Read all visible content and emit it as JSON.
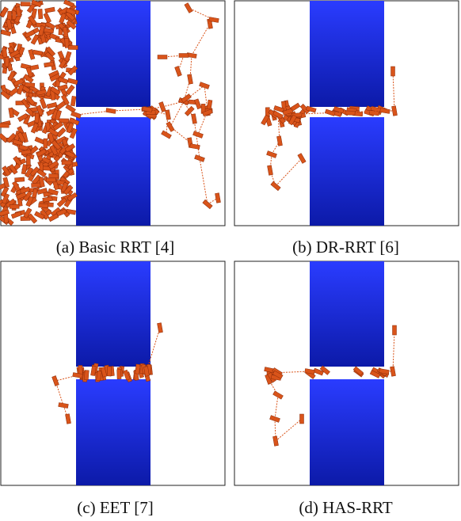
{
  "figure": {
    "panels": [
      {
        "id": "a",
        "caption": "(a) Basic RRT [4]"
      },
      {
        "id": "b",
        "caption": "(b) DR-RRT [6]"
      },
      {
        "id": "c",
        "caption": "(c) EET [7]"
      },
      {
        "id": "d",
        "caption": "(d) HAS-RRT"
      }
    ],
    "colors": {
      "obstacle_light": "#2a3cff",
      "obstacle_dark": "#0c1aa8",
      "tree": "#d9541a",
      "frame": "#222222"
    }
  }
}
